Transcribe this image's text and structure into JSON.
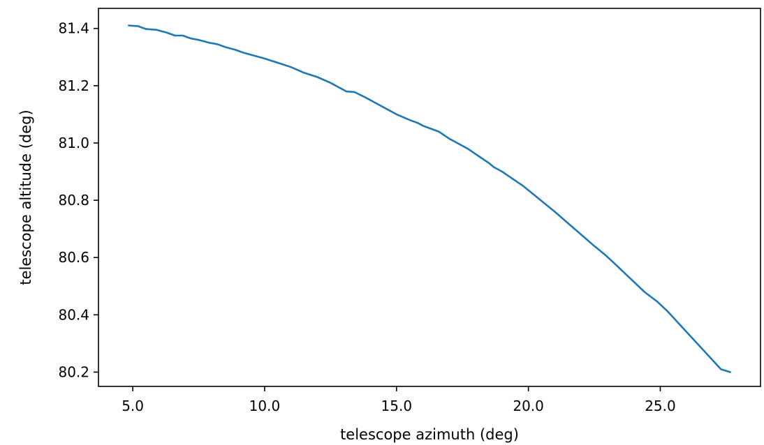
{
  "chart_data": {
    "type": "line",
    "title": "",
    "xlabel": "telescope azimuth (deg)",
    "ylabel": "telescope altitude (deg)",
    "xlim": [
      3.7,
      28.8
    ],
    "ylim": [
      80.15,
      81.47
    ],
    "xticks": [
      5.0,
      10.0,
      15.0,
      20.0,
      25.0
    ],
    "xtick_labels": [
      "5.0",
      "10.0",
      "15.0",
      "20.0",
      "25.0"
    ],
    "yticks": [
      80.2,
      80.4,
      80.6,
      80.8,
      81.0,
      81.2,
      81.4
    ],
    "ytick_labels": [
      "80.2",
      "80.4",
      "80.6",
      "80.8",
      "81.0",
      "81.2",
      "81.4"
    ],
    "grid": false,
    "legend": false,
    "series": [
      {
        "color": "#1f77b4",
        "x": [
          4.85,
          5.2,
          5.5,
          5.9,
          6.3,
          6.6,
          6.9,
          7.2,
          7.5,
          7.9,
          8.2,
          8.5,
          8.9,
          9.2,
          9.6,
          10.0,
          10.5,
          11.0,
          11.5,
          12.0,
          12.5,
          12.9,
          13.1,
          13.4,
          13.8,
          14.2,
          14.6,
          15.0,
          15.5,
          15.8,
          16.0,
          16.3,
          16.6,
          17.0,
          17.3,
          17.7,
          18.1,
          18.5,
          18.7,
          19.0,
          19.4,
          19.8,
          20.2,
          20.6,
          21.0,
          21.5,
          22.0,
          22.5,
          22.9,
          23.2,
          23.6,
          24.0,
          24.4,
          24.9,
          25.3,
          25.7,
          26.1,
          26.5,
          26.9,
          27.3,
          27.65
        ],
        "y": [
          81.41,
          81.408,
          81.398,
          81.395,
          81.385,
          81.375,
          81.375,
          81.365,
          81.36,
          81.35,
          81.345,
          81.335,
          81.325,
          81.315,
          81.305,
          81.295,
          81.28,
          81.265,
          81.245,
          81.23,
          81.21,
          81.19,
          81.18,
          81.178,
          81.16,
          81.14,
          81.12,
          81.1,
          81.08,
          81.07,
          81.06,
          81.05,
          81.04,
          81.015,
          81.0,
          80.98,
          80.955,
          80.93,
          80.915,
          80.9,
          80.875,
          80.85,
          80.82,
          80.79,
          80.76,
          80.72,
          80.68,
          80.64,
          80.61,
          80.585,
          80.55,
          80.515,
          80.48,
          80.445,
          80.41,
          80.37,
          80.33,
          80.29,
          80.25,
          80.21,
          80.2
        ]
      }
    ]
  }
}
